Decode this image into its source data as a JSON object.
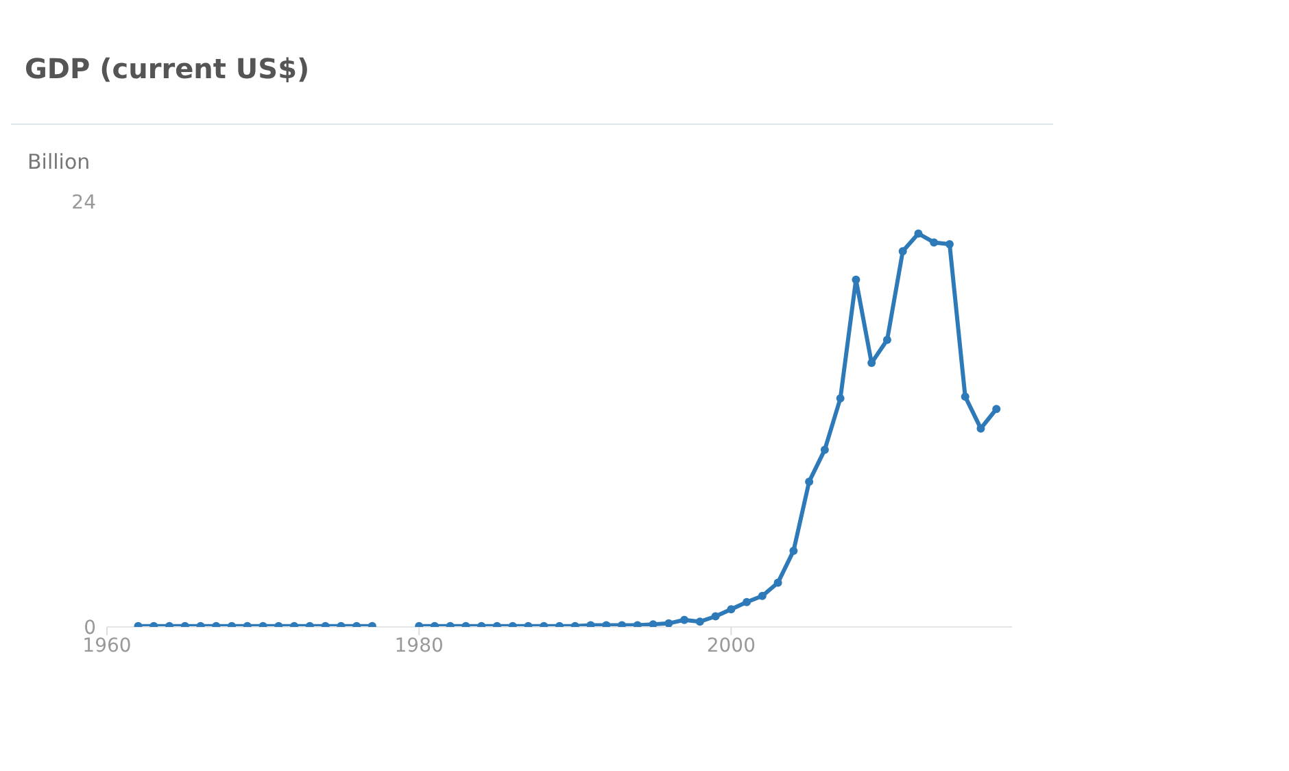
{
  "chart_data": {
    "type": "line",
    "title": "GDP (current US$)",
    "ylabel": "Billion",
    "x": [
      1962,
      1963,
      1964,
      1965,
      1966,
      1967,
      1968,
      1969,
      1970,
      1971,
      1972,
      1973,
      1974,
      1975,
      1976,
      1977,
      1978,
      1979,
      1980,
      1981,
      1982,
      1983,
      1984,
      1985,
      1986,
      1987,
      1988,
      1989,
      1990,
      1991,
      1992,
      1993,
      1994,
      1995,
      1996,
      1997,
      1998,
      1999,
      2000,
      2001,
      2002,
      2003,
      2004,
      2005,
      2006,
      2007,
      2008,
      2009,
      2010,
      2011,
      2012,
      2013,
      2014,
      2015,
      2016,
      2017
    ],
    "series": [
      {
        "color": "#2e7ab8",
        "values": [
          0.05,
          0.05,
          0.05,
          0.05,
          0.05,
          0.05,
          0.05,
          0.05,
          0.05,
          0.05,
          0.05,
          0.05,
          0.05,
          0.05,
          0.05,
          0.05,
          null,
          null,
          0.05,
          0.05,
          0.05,
          0.05,
          0.05,
          0.05,
          0.05,
          0.05,
          0.05,
          0.05,
          0.05,
          0.1,
          0.1,
          0.1,
          0.1,
          0.15,
          0.2,
          0.4,
          0.3,
          0.6,
          1.0,
          1.4,
          1.75,
          2.5,
          4.3,
          8.2,
          10.0,
          12.9,
          19.6,
          14.9,
          16.2,
          21.2,
          22.2,
          21.7,
          21.6,
          13.0,
          11.2,
          12.3
        ]
      }
    ],
    "xlim": [
      1960,
      2018
    ],
    "xticks": [
      1960,
      1980,
      2000
    ],
    "ylim": [
      0,
      24
    ],
    "yticks": [
      0,
      24
    ],
    "grid": false,
    "marker": "circle",
    "line_style": "solid"
  }
}
